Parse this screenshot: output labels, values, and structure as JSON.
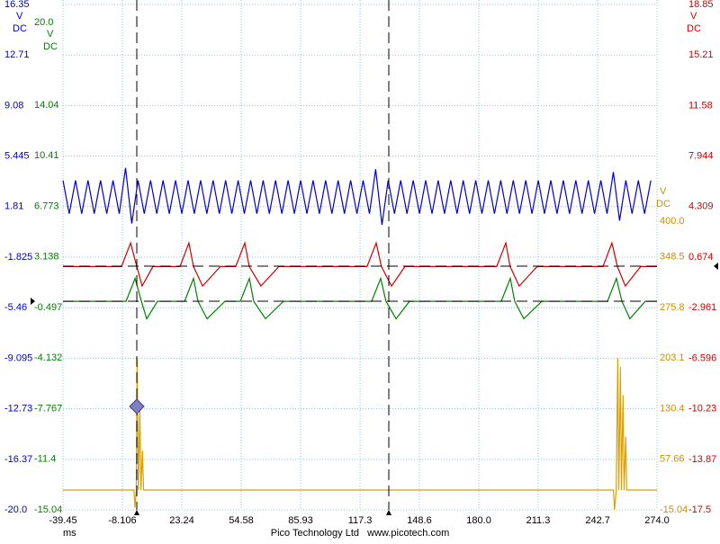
{
  "chart_data": {
    "type": "line",
    "xlabel": "ms",
    "xlim": [
      -39.45,
      274.0
    ],
    "xticks": [
      -39.45,
      -8.106,
      23.24,
      54.58,
      85.93,
      117.3,
      148.6,
      {
        "value": 180,
        "label": "180.0"
      },
      211.3,
      242.7,
      {
        "value": 274,
        "label": "274.0"
      }
    ],
    "grid": true,
    "axes": [
      {
        "color": "#0000c8",
        "units": [
          "V",
          "DC"
        ],
        "ylim": [
          -20,
          16.35
        ],
        "yticks": [
          16.35,
          12.71,
          9.08,
          5.445,
          1.81,
          -1.825,
          -5.46,
          -9.095,
          -12.73,
          -16.37,
          {
            "value": -20,
            "label": "-20.0"
          }
        ]
      },
      {
        "color": "#008000",
        "units": [
          "V",
          "DC"
        ],
        "ylim": [
          -15.04,
          20
        ],
        "yticks": [
          {
            "value": 20,
            "label": "20.0"
          },
          14.04,
          10.41,
          6.773,
          3.138,
          -0.497,
          -4.132,
          -7.767,
          -11.4,
          -15.04
        ]
      },
      {
        "color": "#d00000",
        "units": [
          "V",
          "DC"
        ],
        "ylim": [
          -17.5,
          18.85
        ],
        "yticks": [
          18.85,
          15.21,
          11.58,
          7.944,
          4.309,
          0.674,
          -2.961,
          -6.596,
          -10.23,
          -13.87,
          -17.5
        ]
      },
      {
        "color": "#c89000",
        "units": [
          "V",
          "DC"
        ],
        "ylim": [
          -15.04,
          400
        ],
        "yticks": [
          {
            "value": 400,
            "label": "400.0"
          },
          348.5,
          275.8,
          203.1,
          130.4,
          57.66,
          -15.04
        ]
      }
    ],
    "series": [
      {
        "axis": 0,
        "color": "#0000c8",
        "x": [
          -39.45,
          -36.15,
          -32.85,
          -29.55,
          -26.25,
          -22.95,
          -19.65,
          -16.35,
          -13.05,
          -9.75,
          -6.45,
          -3.15,
          0.15,
          3.45,
          6.75,
          10.05,
          13.35,
          16.65,
          19.95,
          23.25,
          26.55,
          29.85,
          33.15,
          36.45,
          39.75,
          43.05,
          46.35,
          49.65,
          52.95,
          56.25,
          59.55,
          62.85,
          66.15,
          69.45,
          72.75,
          76.05,
          79.35,
          82.65,
          85.95,
          89.25,
          92.55,
          95.85,
          99.15,
          102.45,
          105.75,
          109.05,
          112.35,
          115.65,
          118.95,
          122.25,
          125.55,
          128.85,
          132.15,
          135.45,
          138.75,
          142.05,
          145.35,
          148.65,
          151.95,
          155.25,
          158.55,
          161.85,
          165.15,
          168.45,
          171.75,
          175.05,
          178.35,
          181.65,
          184.95,
          188.25,
          191.55,
          194.85,
          198.15,
          201.45,
          204.75,
          208.05,
          211.35,
          214.65,
          217.95,
          221.25,
          224.55,
          227.85,
          231.15,
          234.45,
          237.75,
          241.05,
          244.35,
          247.65,
          250.95,
          254.25,
          257.55,
          260.85,
          264.15,
          267.45,
          270.75
        ],
        "values": [
          3.7,
          1.3,
          3.7,
          1.3,
          3.7,
          1.3,
          3.7,
          1.3,
          3.7,
          1.3,
          4.6,
          0.6,
          3.7,
          1.3,
          3.7,
          1.3,
          3.7,
          1.3,
          3.7,
          1.3,
          3.7,
          1.3,
          3.7,
          1.3,
          3.7,
          1.3,
          3.7,
          1.3,
          3.7,
          1.3,
          3.7,
          1.3,
          3.7,
          1.3,
          3.7,
          1.3,
          3.7,
          1.3,
          3.7,
          1.3,
          3.7,
          1.3,
          3.7,
          1.3,
          3.7,
          1.3,
          3.7,
          1.3,
          3.7,
          1.3,
          4.5,
          0.5,
          3.7,
          1.3,
          3.7,
          1.3,
          3.7,
          1.3,
          3.7,
          1.3,
          3.7,
          1.3,
          3.7,
          1.3,
          3.7,
          1.3,
          3.7,
          1.3,
          3.7,
          1.3,
          3.7,
          1.3,
          3.7,
          1.3,
          3.7,
          1.3,
          3.7,
          1.3,
          3.7,
          1.3,
          3.7,
          1.3,
          3.7,
          1.3,
          3.7,
          1.3,
          3.7,
          1.3,
          4.3,
          0.8,
          3.7,
          1.3,
          3.7,
          1.3,
          3.7
        ]
      },
      {
        "axis": 2,
        "color": "#d00000",
        "x": [
          -39.45,
          -8.6,
          -3.8,
          -0.5,
          2.3,
          8.0,
          22.3,
          27.0,
          29.4,
          34.2,
          43.6,
          51.7,
          56.5,
          58.8,
          65.0,
          74.5,
          121.0,
          125.8,
          128.6,
          133.9,
          141.0,
          189.4,
          194.2,
          196.5,
          201.3,
          210.8,
          245.5,
          250.2,
          253.1,
          257.3,
          265.4,
          274.0
        ],
        "values": [
          0,
          0,
          1.7,
          0,
          -1.4,
          0,
          0,
          1.7,
          0,
          -1.4,
          0,
          0,
          1.7,
          0,
          -1.4,
          0,
          0,
          1.7,
          0,
          -1.4,
          0,
          0,
          1.7,
          0,
          -1.4,
          0,
          0,
          1.7,
          0,
          -1.4,
          0,
          0
        ]
      },
      {
        "axis": 1,
        "color": "#008000",
        "x": [
          -39.45,
          -6.2,
          -1.4,
          1.9,
          4.7,
          10.4,
          24.7,
          29.4,
          31.8,
          36.6,
          46.0,
          54.1,
          58.9,
          61.2,
          67.4,
          76.9,
          123.4,
          128.2,
          131.0,
          136.3,
          143.4,
          191.8,
          196.6,
          198.9,
          203.7,
          213.2,
          247.9,
          252.6,
          255.5,
          259.7,
          267.8,
          274.0
        ],
        "values": [
          -0.05,
          -0.05,
          1.6,
          -0.05,
          -1.3,
          -0.05,
          -0.05,
          1.6,
          -0.05,
          -1.3,
          -0.05,
          -0.05,
          1.6,
          -0.05,
          -1.3,
          -0.05,
          -0.05,
          1.6,
          -0.05,
          -1.3,
          -0.05,
          -0.05,
          1.6,
          -0.05,
          -1.3,
          -0.05,
          -0.05,
          1.6,
          -0.05,
          -1.3,
          -0.05,
          -0.05
        ]
      },
      {
        "axis": 3,
        "color": "#d8a000",
        "x": [
          -39.45,
          -2.0,
          -1.5,
          -0.8,
          -0.3,
          0.3,
          1.1,
          1.7,
          2.5,
          3.1,
          251.0,
          251.6,
          252.5,
          253.3,
          253.8,
          254.7,
          255.2,
          256.1,
          256.6,
          257.5,
          258.0,
          274.0
        ],
        "values": [
          13.4,
          13.4,
          -12,
          13.4,
          203,
          13.4,
          130,
          13.4,
          70,
          13.4,
          13.4,
          -15,
          13.4,
          203,
          13.4,
          190,
          13.4,
          150,
          13.4,
          90,
          13.4,
          13.4
        ]
      }
    ]
  },
  "footer": "Pico Technology Ltd   www.picotech.com"
}
